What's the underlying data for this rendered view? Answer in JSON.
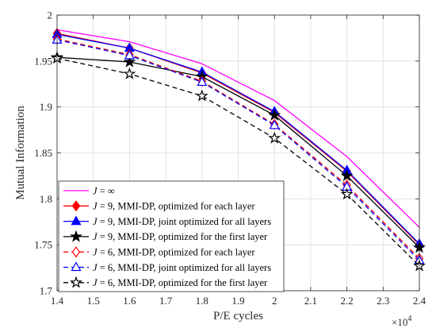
{
  "chart_data": {
    "type": "line",
    "xlabel": "P/E cycles",
    "ylabel": "Mutual Information",
    "x_multiplier_base": "×10",
    "x_multiplier_exp": "4",
    "xlim": [
      1.4,
      2.4
    ],
    "ylim": [
      1.7,
      2.0
    ],
    "x_ticks": [
      "1.4",
      "1.5",
      "1.6",
      "1.7",
      "1.8",
      "1.9",
      "2",
      "2.1",
      "2.2",
      "2.3",
      "2.4"
    ],
    "y_ticks": [
      "1.7",
      "1.75",
      "1.8",
      "1.85",
      "1.9",
      "1.95",
      "2"
    ],
    "grid": true,
    "legend_position": "bottom-left",
    "x": [
      1.4,
      1.6,
      1.8,
      2.0,
      2.2,
      2.4
    ],
    "series": [
      {
        "name_prefix": "J",
        "name_suffix": " = ∞",
        "color": "#ff00ff",
        "dash": "solid",
        "marker": "none",
        "values": [
          1.984,
          1.971,
          1.947,
          1.907,
          1.846,
          1.769
        ]
      },
      {
        "name_prefix": "J",
        "name_suffix": " = 9, MMI-DP, optimized for each layer",
        "color": "#ff0000",
        "dash": "solid",
        "marker": "diamond-filled",
        "values": [
          1.98,
          1.964,
          1.937,
          1.894,
          1.83,
          1.75
        ]
      },
      {
        "name_prefix": "J",
        "name_suffix": " = 9, MMI-DP, joint optimized for all layers",
        "color": "#0000ff",
        "dash": "solid",
        "marker": "triangle-filled",
        "values": [
          1.979,
          1.964,
          1.938,
          1.895,
          1.831,
          1.751
        ]
      },
      {
        "name_prefix": "J",
        "name_suffix": " = 9, MMI-DP, optimized for the first layer",
        "color": "#000000",
        "dash": "solid",
        "marker": "star-filled",
        "values": [
          1.954,
          1.949,
          1.933,
          1.891,
          1.825,
          1.747
        ]
      },
      {
        "name_prefix": "J",
        "name_suffix": " = 6, MMI-DP, optimized for each layer",
        "color": "#ff0000",
        "dash": "dashed",
        "marker": "diamond-open",
        "values": [
          1.974,
          1.957,
          1.928,
          1.881,
          1.815,
          1.735
        ]
      },
      {
        "name_prefix": "J",
        "name_suffix": " = 6, MMI-DP, joint optimized for all layers",
        "color": "#0000ff",
        "dash": "dashed",
        "marker": "triangle-open",
        "values": [
          1.973,
          1.956,
          1.927,
          1.88,
          1.813,
          1.733
        ]
      },
      {
        "name_prefix": "J",
        "name_suffix": " = 6, MMI-DP, optimized for the first layer",
        "color": "#000000",
        "dash": "dashed",
        "marker": "star-open",
        "values": [
          1.953,
          1.936,
          1.912,
          1.866,
          1.805,
          1.727
        ]
      }
    ]
  }
}
